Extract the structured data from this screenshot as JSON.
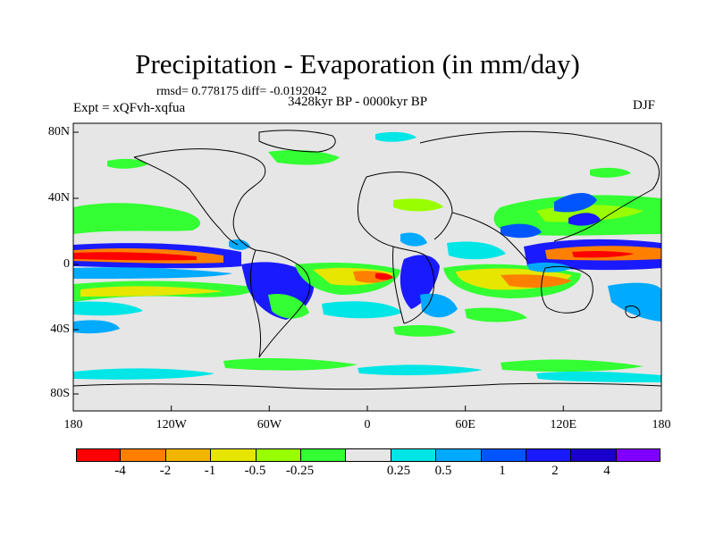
{
  "title": "Precipitation - Evaporation (in mm/day)",
  "stats": "rmsd= 0.778175 diff= -0.0192042",
  "subtitle": "3428kyr BP - 0000kyr BP",
  "experiment": "Expt = xQFvh-xqfua",
  "season": "DJF",
  "lat_labels": [
    "80N",
    "40N",
    "0",
    "40S",
    "80S"
  ],
  "lon_labels": [
    "180",
    "120W",
    "60W",
    "0",
    "60E",
    "120E",
    "180"
  ],
  "colorbar": {
    "colors": [
      "#ff0000",
      "#ff8000",
      "#f2b600",
      "#e6e600",
      "#99ff00",
      "#33ff33",
      "#e6e6e6",
      "#00e6e6",
      "#00aaff",
      "#0055ff",
      "#1a1aff",
      "#1a00cc",
      "#8000ff"
    ],
    "labels": [
      "-4",
      "-2",
      "-1",
      "-0.5",
      "-0.25",
      "0.25",
      "0.5",
      "1",
      "2",
      "4"
    ]
  },
  "map": {
    "background_color": "#e6e6e6",
    "lat_range": [
      -90,
      90
    ],
    "lon_range": [
      -180,
      180
    ]
  }
}
